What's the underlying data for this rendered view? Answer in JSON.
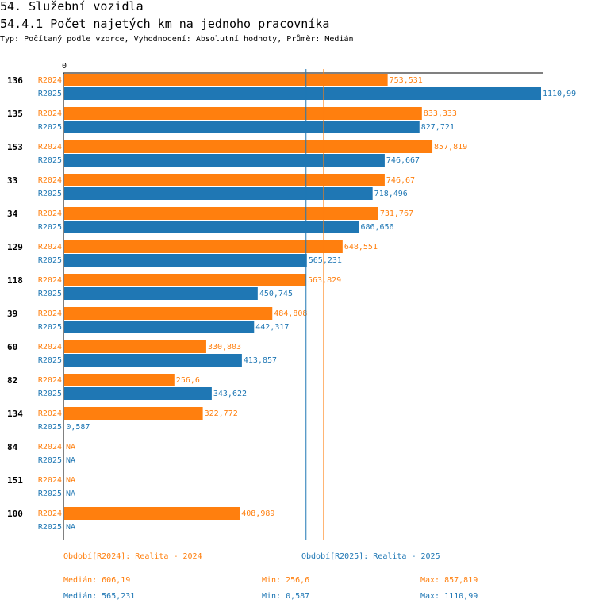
{
  "header": {
    "title": "54. Služební vozidla",
    "subtitle": "54.4.1 Počet najetých km na jednoho pracovníka",
    "info": "Typ: Počítaný podle vzorce, Vyhodnocení: Absolutní hodnoty, Průměr: Medián"
  },
  "colors": {
    "r2024": "#ff7f0e",
    "r2025": "#1f77b4"
  },
  "chart_data": {
    "type": "bar",
    "orientation": "horizontal",
    "axis_zero_label": "0",
    "xlim": [
      0,
      1110.99
    ],
    "categories": [
      "136",
      "135",
      "153",
      "33",
      "34",
      "129",
      "118",
      "39",
      "60",
      "82",
      "134",
      "84",
      "151",
      "100"
    ],
    "series": [
      {
        "name": "R2024",
        "values": [
          753.531,
          833.333,
          857.819,
          746.67,
          731.767,
          648.551,
          563.829,
          484.808,
          330.803,
          256.6,
          322.772,
          null,
          null,
          408.989
        ],
        "labels": [
          "753,531",
          "833,333",
          "857,819",
          "746,67",
          "731,767",
          "648,551",
          "563,829",
          "484,808",
          "330,803",
          "256,6",
          "322,772",
          "NA",
          "NA",
          "408,989"
        ]
      },
      {
        "name": "R2025",
        "values": [
          1110.99,
          827.721,
          746.667,
          718.496,
          686.656,
          565.231,
          450.745,
          442.317,
          413.857,
          343.622,
          0.587,
          null,
          null,
          null
        ],
        "labels": [
          "1110,99",
          "827,721",
          "746,667",
          "718,496",
          "686,656",
          "565,231",
          "450,745",
          "442,317",
          "413,857",
          "343,622",
          "0,587",
          "NA",
          "NA",
          "NA"
        ]
      }
    ],
    "reference_lines": [
      {
        "series": "R2024",
        "stat": "median",
        "value": 606.19
      },
      {
        "series": "R2025",
        "stat": "median",
        "value": 565.231
      }
    ]
  },
  "legend": {
    "r2024": {
      "period": "Období[R2024]: Realita - 2024",
      "median": "Medián: 606,19",
      "min": "Min: 256,6",
      "max": "Max: 857,819"
    },
    "r2025": {
      "period": "Období[R2025]: Realita - 2025",
      "median": "Medián: 565,231",
      "min": "Min: 0,587",
      "max": "Max: 1110,99"
    }
  }
}
